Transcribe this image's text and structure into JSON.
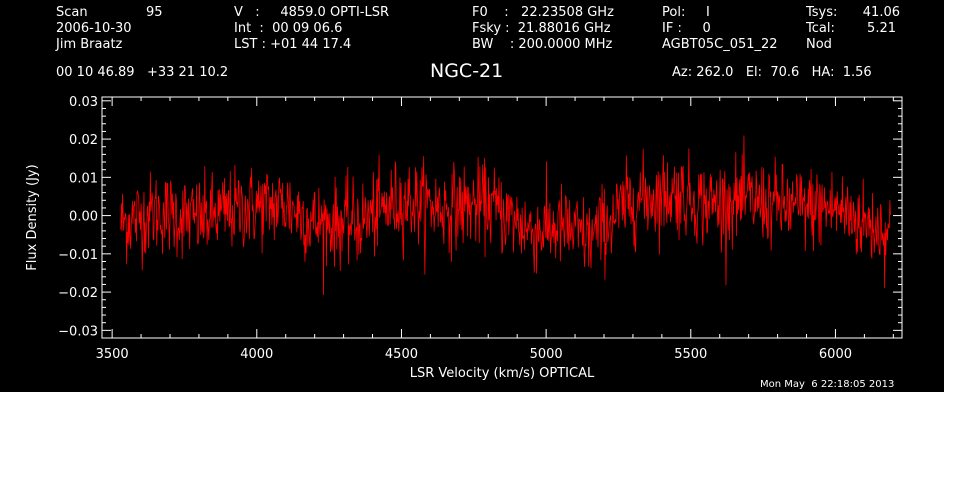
{
  "header": {
    "col1": {
      "scan_label": "Scan",
      "scan_value": "95",
      "date": "2006-10-30",
      "observer": "Jim Braatz"
    },
    "col2": {
      "velocity": "V   :     4859.0 OPTI-LSR",
      "integration": "Int  :  00 09 06.6",
      "lst": "LST : +01 44 17.4"
    },
    "col3": {
      "f0": "F0    :   22.23508 GHz",
      "fsky": "Fsky :  21.88016 GHz",
      "bw": "BW    : 200.0000 MHz"
    },
    "col4": {
      "pol": "Pol:     I",
      "if": "IF :     0",
      "project": "AGBT05C_051_22"
    },
    "col5": {
      "tsys_label": "Tsys:",
      "tsys_value": "41.06",
      "tcal_label": "Tcal:",
      "tcal_value": "5.21",
      "mode": "Nod"
    },
    "coords": "00 10 46.89   +33 21 10.2",
    "pointing": "Az: 262.0   El:  70.6   HA:  1.56",
    "timestamp": "Mon May  6 22:18:05 2013"
  },
  "chart_data": {
    "type": "line",
    "title": "NGC-21",
    "xlabel": "LSR Velocity (km/s) OPTICAL",
    "ylabel": "Flux Density (Jy)",
    "xlim": [
      3465,
      6230
    ],
    "ylim": [
      -0.032,
      0.031
    ],
    "xticks": [
      3500,
      4000,
      4500,
      5000,
      5500,
      6000
    ],
    "xtick_labels": [
      "3500",
      "4000",
      "4500",
      "5000",
      "5500",
      "6000"
    ],
    "yticks": [
      -0.03,
      -0.02,
      -0.01,
      0.0,
      0.01,
      0.02,
      0.03
    ],
    "ytick_labels": [
      "−0.03",
      "−0.02",
      "−0.01",
      "0.00",
      "0.01",
      "0.02",
      "0.03"
    ],
    "grid": false,
    "series": [
      {
        "color": "#ff0000",
        "x_start": 3530,
        "x_end": 6190,
        "n_points": 1330,
        "noise_rms": 0.006,
        "baseline": {
          "x": [
            3530,
            3650,
            3800,
            3950,
            4100,
            4200,
            4350,
            4500,
            4650,
            4800,
            4950,
            5050,
            5150,
            5300,
            5450,
            5550,
            5700,
            5850,
            6000,
            6100,
            6190
          ],
          "y": [
            -0.002,
            0.001,
            -0.001,
            0.002,
            0.003,
            -0.002,
            -0.002,
            0.004,
            0.002,
            0.003,
            -0.004,
            -0.003,
            -0.006,
            0.004,
            0.006,
            0.003,
            0.004,
            0.002,
            0.002,
            -0.002,
            -0.004
          ]
        }
      }
    ]
  }
}
